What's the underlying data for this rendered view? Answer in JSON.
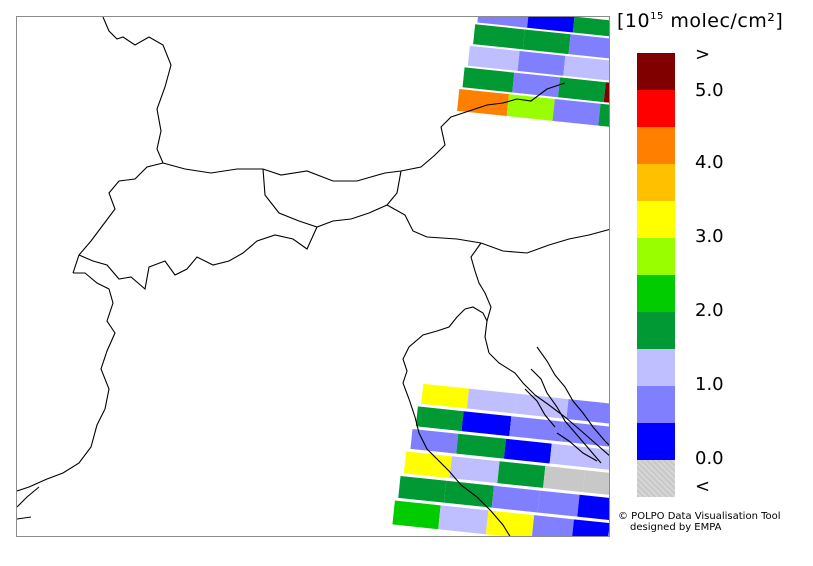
{
  "legend": {
    "title_prefix": "[10",
    "title_exponent": "15",
    "title_suffix": " molec/cm²]",
    "labels": [
      ">",
      "5.0",
      "4.0",
      "3.0",
      "2.0",
      "1.0",
      "0.0",
      "<"
    ],
    "colors": [
      "#800000",
      "#ff0000",
      "#ff8000",
      "#ffc000",
      "#ffff00",
      "#99ff00",
      "#00cc00",
      "#009933",
      "#bfbfff",
      "#8080ff",
      "#0000ff",
      "#c8c8c8"
    ]
  },
  "credit": {
    "line1": "© POLPO Data Visualisation Tool",
    "line2": "designed by EMPA"
  }
}
